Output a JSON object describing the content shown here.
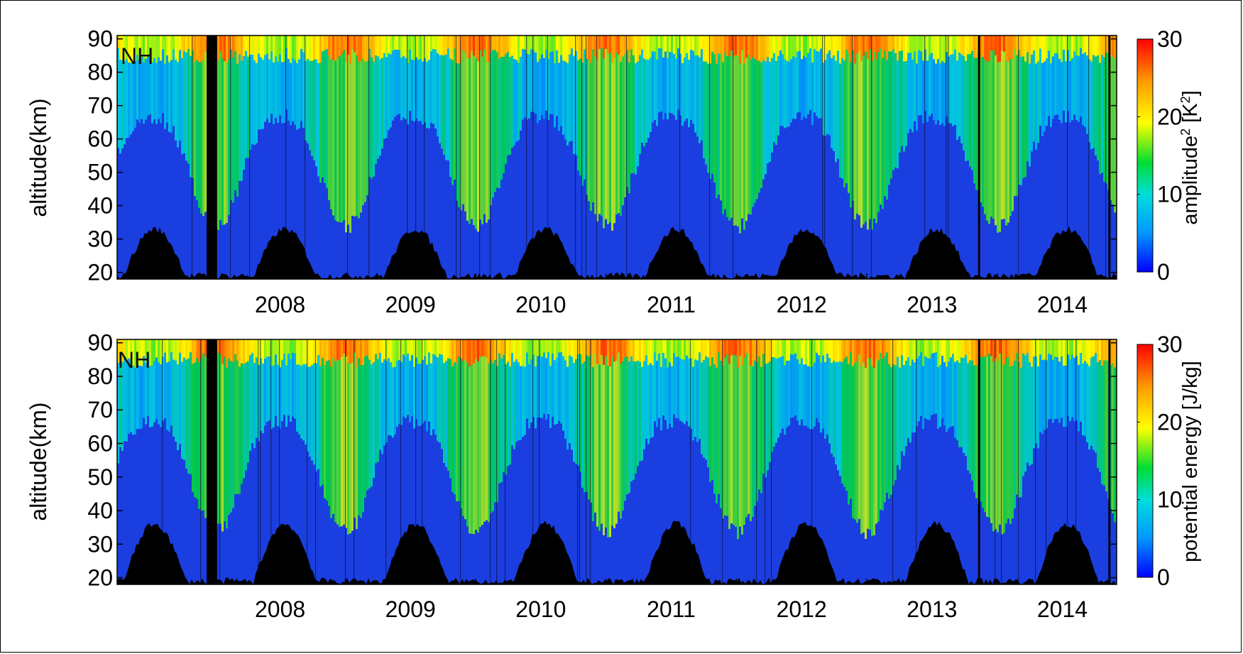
{
  "chart_data": [
    {
      "type": "heatmap",
      "panel": "top",
      "annotation": "NH",
      "ylabel": "altitude(km)",
      "yticks": [
        20,
        30,
        40,
        50,
        60,
        70,
        80,
        90
      ],
      "ylim": [
        18,
        91
      ],
      "xlim": [
        "2007-04",
        "2014-12"
      ],
      "xticks": [
        {
          "label": "2008",
          "date": "2008-01"
        },
        {
          "label": "2009",
          "date": "2009-01"
        },
        {
          "label": "2010",
          "date": "2010-01"
        },
        {
          "label": "2011",
          "date": "2011-01"
        },
        {
          "label": "2012",
          "date": "2012-01"
        },
        {
          "label": "2013",
          "date": "2013-01"
        },
        {
          "label": "2014",
          "date": "2014-01"
        }
      ],
      "colorbar": {
        "label_base": "amplitude",
        "label_sup1": "2",
        "label_mid": " [K",
        "label_sup2": "2",
        "label_end": "]",
        "range": [
          0,
          30
        ],
        "ticks": [
          0,
          10,
          20,
          30
        ],
        "colormap": [
          "#0000ff",
          "#0099ff",
          "#00dddd",
          "#00dd33",
          "#ffff00",
          "#ff9900",
          "#ff0000"
        ]
      }
    },
    {
      "type": "heatmap",
      "panel": "bottom",
      "annotation": "NH",
      "ylabel": "altitude(km)",
      "yticks": [
        20,
        30,
        40,
        50,
        60,
        70,
        80,
        90
      ],
      "ylim": [
        18,
        91
      ],
      "xlim": [
        "2007-04",
        "2014-12"
      ],
      "xticks": [
        {
          "label": "2008",
          "date": "2008-01"
        },
        {
          "label": "2009",
          "date": "2009-01"
        },
        {
          "label": "2010",
          "date": "2010-01"
        },
        {
          "label": "2011",
          "date": "2011-01"
        },
        {
          "label": "2012",
          "date": "2012-01"
        },
        {
          "label": "2013",
          "date": "2013-01"
        },
        {
          "label": "2014",
          "date": "2014-01"
        }
      ],
      "colorbar": {
        "label_base": "potential energy [J/kg]",
        "range": [
          0,
          30
        ],
        "ticks": [
          0,
          10,
          20,
          30
        ],
        "colormap": [
          "#0000ff",
          "#0099ff",
          "#00dddd",
          "#00dd33",
          "#ffff00",
          "#ff9900",
          "#ff0000"
        ]
      }
    }
  ]
}
